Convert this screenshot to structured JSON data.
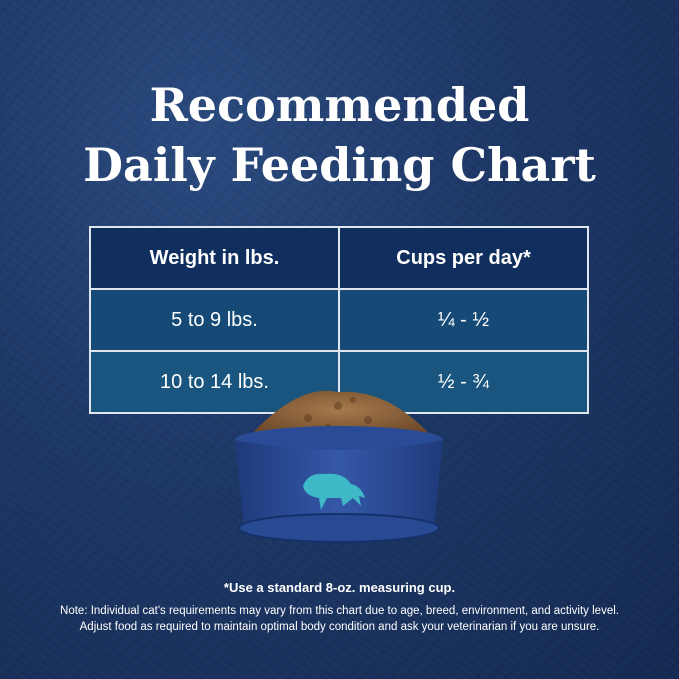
{
  "title": {
    "line1": "Recommended",
    "line2": "Daily Feeding Chart"
  },
  "table": {
    "headers": [
      "Weight in lbs.",
      "Cups per day*"
    ],
    "rows": [
      [
        "5 to 9 lbs.",
        "¼ - ½"
      ],
      [
        "10 to 14 lbs.",
        "½ - ¾"
      ]
    ]
  },
  "footnote": "*Use a standard 8-oz. measuring cup.",
  "note": {
    "line1": "Note: Individual cat's requirements may vary from this chart due to age, breed, environment, and activity level.",
    "line2": "Adjust food as required to maintain optimal body condition and ask your veterinarian if you are unsure."
  },
  "colors": {
    "header": "#102f5f",
    "row": "#164a76",
    "background": "#1d3766",
    "bowl": "#2c4f9c",
    "logo": "#3fb8c8"
  }
}
